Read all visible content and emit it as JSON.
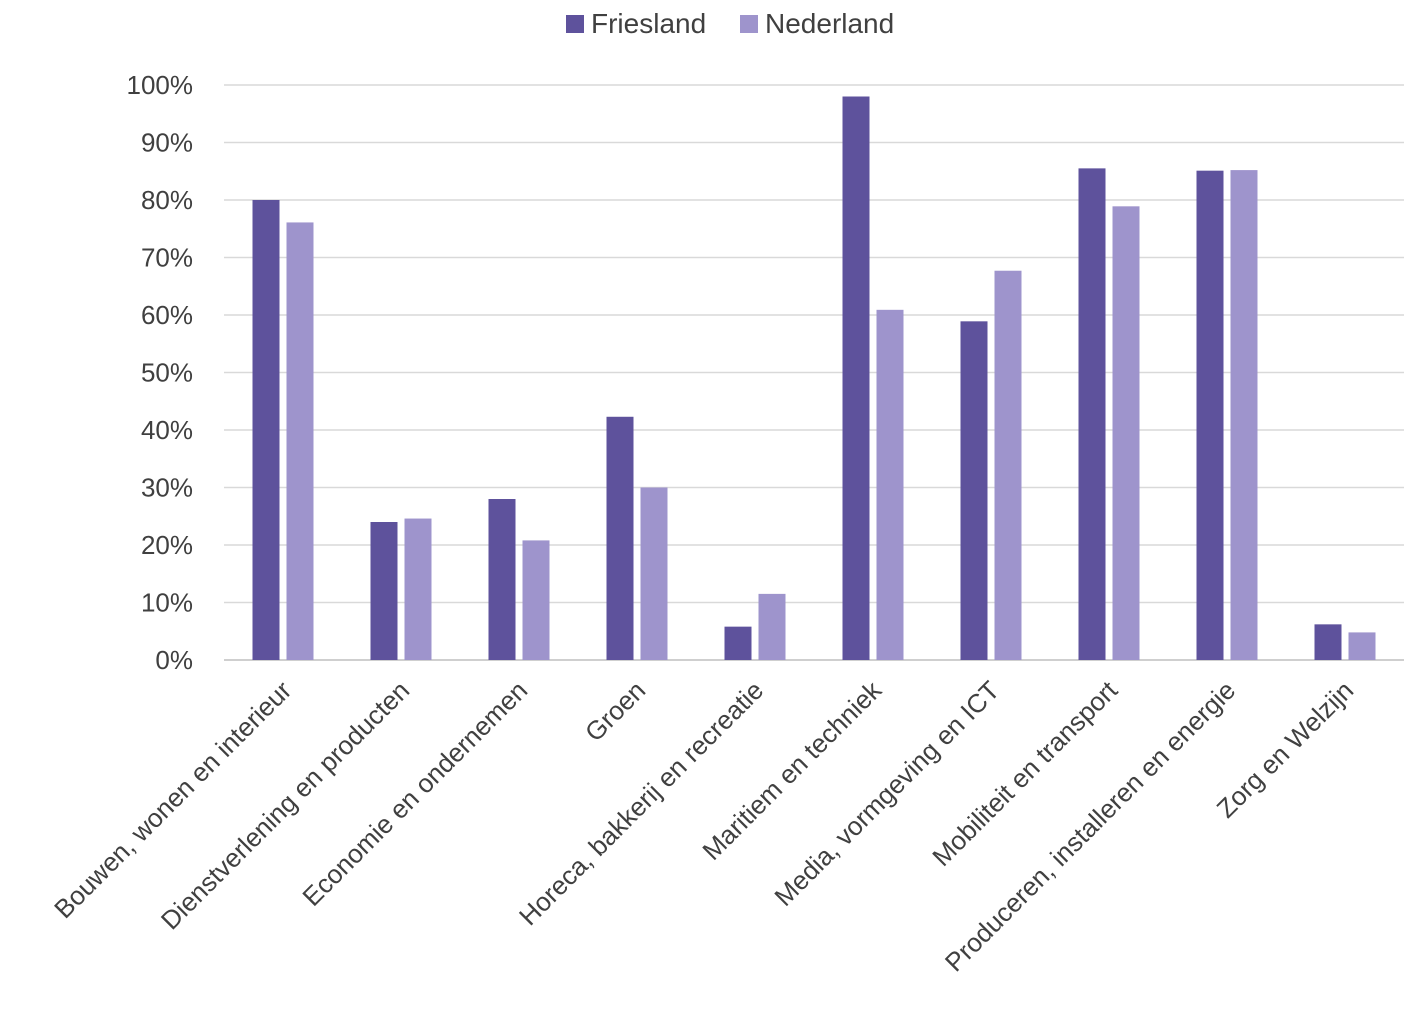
{
  "chart_data": {
    "type": "bar",
    "title": "",
    "xlabel": "",
    "ylabel": "",
    "ylim": [
      0,
      100
    ],
    "yticks": [
      "0%",
      "10%",
      "20%",
      "30%",
      "40%",
      "50%",
      "60%",
      "70%",
      "80%",
      "90%",
      "100%"
    ],
    "grid": true,
    "legend_position": "top-center",
    "categories": [
      "Bouwen, wonen en interieur",
      "Dienstverlening en producten",
      "Economie en ondernemen",
      "Groen",
      "Horeca, bakkerij en recreatie",
      "Maritiem en techniek",
      "Media, vormgeving en ICT",
      "Mobiliteit en transport",
      "Produceren, installeren en energie",
      "Zorg en Welzijn"
    ],
    "series": [
      {
        "name": "Friesland",
        "color": "#5e529c",
        "values": [
          80,
          24,
          28,
          42.3,
          5.8,
          98,
          58.9,
          85.5,
          85.1,
          6.2
        ]
      },
      {
        "name": "Nederland",
        "color": "#9e94cc",
        "values": [
          76.1,
          24.6,
          20.8,
          30,
          11.5,
          60.9,
          67.7,
          78.9,
          85.2,
          4.8
        ]
      }
    ]
  }
}
